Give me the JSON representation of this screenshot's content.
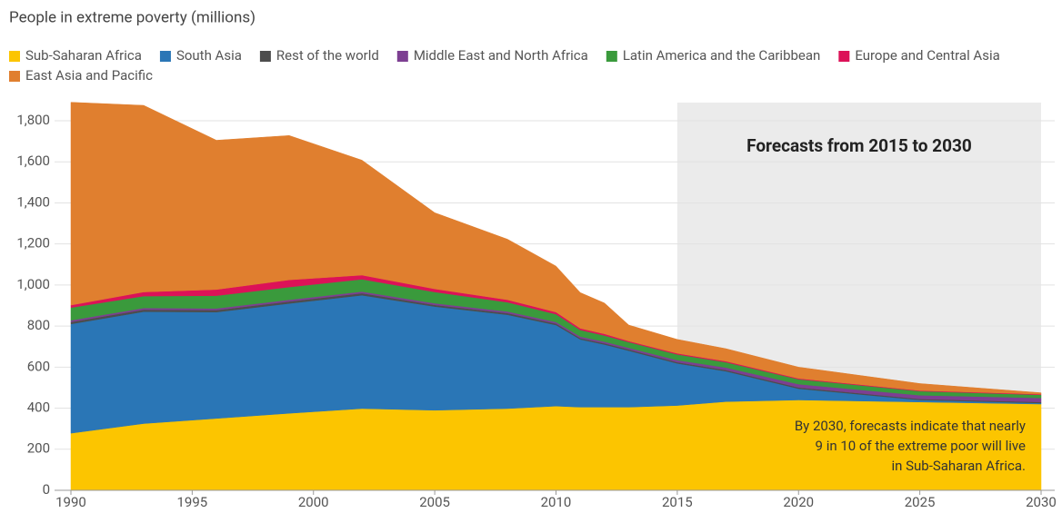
{
  "chart_data": {
    "type": "stacked_area",
    "title": "People in extreme poverty (millions)",
    "x": [
      1990,
      1993,
      1996,
      1999,
      2002,
      2005,
      2008,
      2010,
      2011,
      2012,
      2013,
      2015,
      2017,
      2020,
      2025,
      2030
    ],
    "series": [
      {
        "name": "Sub-Saharan Africa",
        "color": "#fcc500",
        "values": [
          278,
          325,
          350,
          375,
          398,
          390,
          398,
          410,
          405,
          405,
          405,
          413,
          432,
          440,
          430,
          420
        ]
      },
      {
        "name": "South Asia",
        "color": "#2a76b6",
        "values": [
          532,
          545,
          518,
          535,
          552,
          505,
          457,
          395,
          330,
          305,
          275,
          205,
          148,
          55,
          10,
          5
        ]
      },
      {
        "name": "Rest of the world",
        "color": "#4d4d4d",
        "values": [
          10,
          10,
          10,
          10,
          10,
          8,
          8,
          7,
          6,
          6,
          6,
          6,
          6,
          6,
          5,
          5
        ]
      },
      {
        "name": "Middle East and North Africa",
        "color": "#7d3f92",
        "values": [
          8,
          8,
          8,
          8,
          8,
          8,
          8,
          8,
          8,
          8,
          8,
          10,
          12,
          16,
          18,
          20
        ]
      },
      {
        "name": "Latin America and the Caribbean",
        "color": "#3a9a3c",
        "values": [
          62,
          58,
          62,
          62,
          60,
          55,
          45,
          38,
          32,
          30,
          28,
          28,
          26,
          24,
          20,
          15
        ]
      },
      {
        "name": "Europe and Central Asia",
        "color": "#dc1258",
        "values": [
          12,
          20,
          30,
          35,
          20,
          15,
          12,
          10,
          8,
          8,
          5,
          5,
          5,
          4,
          3,
          3
        ]
      },
      {
        "name": "East Asia and Pacific",
        "color": "#e07f2f",
        "values": [
          988,
          909,
          727,
          703,
          560,
          371,
          295,
          224,
          174,
          150,
          78,
          68,
          61,
          55,
          34,
          7
        ]
      }
    ],
    "xlim": [
      1990,
      2030
    ],
    "xticks": [
      1990,
      1995,
      2000,
      2005,
      2010,
      2015,
      2020,
      2025,
      2030
    ],
    "ylim": [
      0,
      1800
    ],
    "yticks": [
      0,
      200,
      400,
      600,
      800,
      {
        "value": 1000,
        "label": "1,000"
      },
      {
        "value": 1200,
        "label": "1,200"
      },
      {
        "value": 1400,
        "label": "1,400"
      },
      {
        "value": 1600,
        "label": "1,600"
      },
      {
        "value": 1800,
        "label": "1,800"
      }
    ],
    "grid": true,
    "forecast": {
      "label": "Forecasts from 2015 to 2030",
      "range": [
        2015,
        2030
      ],
      "color": "#ebebeb"
    },
    "annotation": [
      "By 2030, forecasts indicate that nearly",
      "9 in 10 of the extreme poor will live",
      "in Sub-Saharan Africa."
    ]
  }
}
